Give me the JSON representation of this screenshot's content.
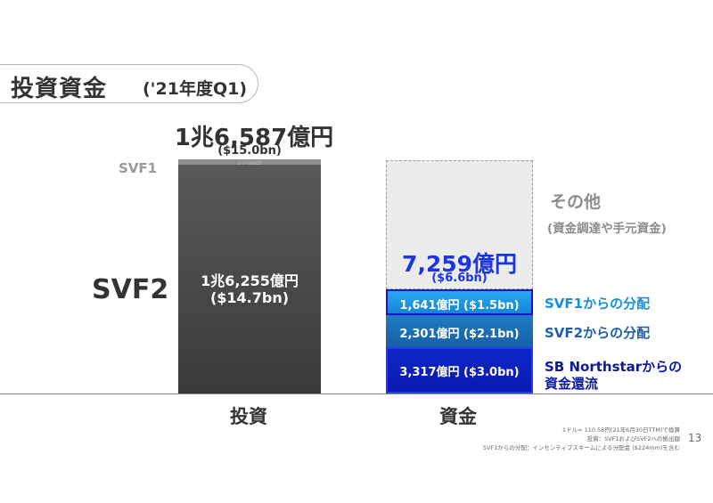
{
  "header": {
    "title": "投資資金",
    "period": "('21年度Q1)"
  },
  "chart_data": {
    "type": "bar",
    "categories": [
      "投資",
      "資金"
    ],
    "stacked": true,
    "ylim": [
      0,
      16587
    ],
    "series": [
      {
        "name": "SVF2",
        "category": "投資",
        "value": 16255,
        "label": "1兆6,255億円",
        "usd": "($14.7bn)"
      },
      {
        "name": "SVF1",
        "category": "投資",
        "value": 332,
        "label": "332億円"
      },
      {
        "name": "SB Northstarからの資金還流",
        "category": "資金",
        "value": 3317,
        "label": "3,317",
        "unit": "億円",
        "usd": "($3.0bn)"
      },
      {
        "name": "SVF2からの分配",
        "category": "資金",
        "value": 2301,
        "label": "2,301",
        "unit": "億円",
        "usd": "($2.1bn)"
      },
      {
        "name": "SVF1からの分配",
        "category": "資金",
        "value": 1641,
        "label": "1,641",
        "unit": "億円",
        "usd": "($1.5bn)"
      },
      {
        "name": "その他",
        "category": "資金",
        "value": 9328
      }
    ],
    "totals": {
      "invest": {
        "value": 16587,
        "label": "1兆6,587億円",
        "usd": "($15.0bn)"
      },
      "funding": {
        "value": 7259,
        "label": "7,259億円",
        "usd": "($6.6bn)"
      }
    },
    "colors": {
      "svf2": "#474747",
      "svf1": "#8e8e8e",
      "other": "#ececec",
      "svf1_dist": "#28a8f2",
      "svf2_dist": "#1f7cc2",
      "northstar": "#1026c8",
      "accent_blue": "#1a35e6"
    }
  },
  "labels": {
    "svf1": "SVF1",
    "svf2": "SVF2",
    "invest_total_big": "1兆6,587億円",
    "invest_total_usd": "($15.0bn)",
    "svf1_small": "332億円",
    "svf2_value": "1兆6,255億円",
    "svf2_usd": "($14.7bn)",
    "other_title": "その他",
    "other_sub": "(資金調達や手元資金)",
    "fund_total_big": "7,259億円",
    "fund_total_usd": "($6.6bn)",
    "seg_a": "1,641億円 ($1.5bn)",
    "seg_b": "2,301億円 ($2.1bn)",
    "seg_c": "3,317億円 ($3.0bn)",
    "side_a": "SVF1からの分配",
    "side_b": "SVF2からの分配",
    "side_c1": "SB Northstarからの",
    "side_c2": "資金還流",
    "cat_invest": "投資",
    "cat_fund": "資金"
  },
  "footnotes": {
    "line1": "1ドル= 110.58円(21年6月30日TTM)で換算",
    "line2": "投資：SVF1およびSVF2への拠出額",
    "line3": "SVF1からの分配：インセンティブスキームによる分配金 ($224mm)を含む"
  },
  "page_number": "13"
}
